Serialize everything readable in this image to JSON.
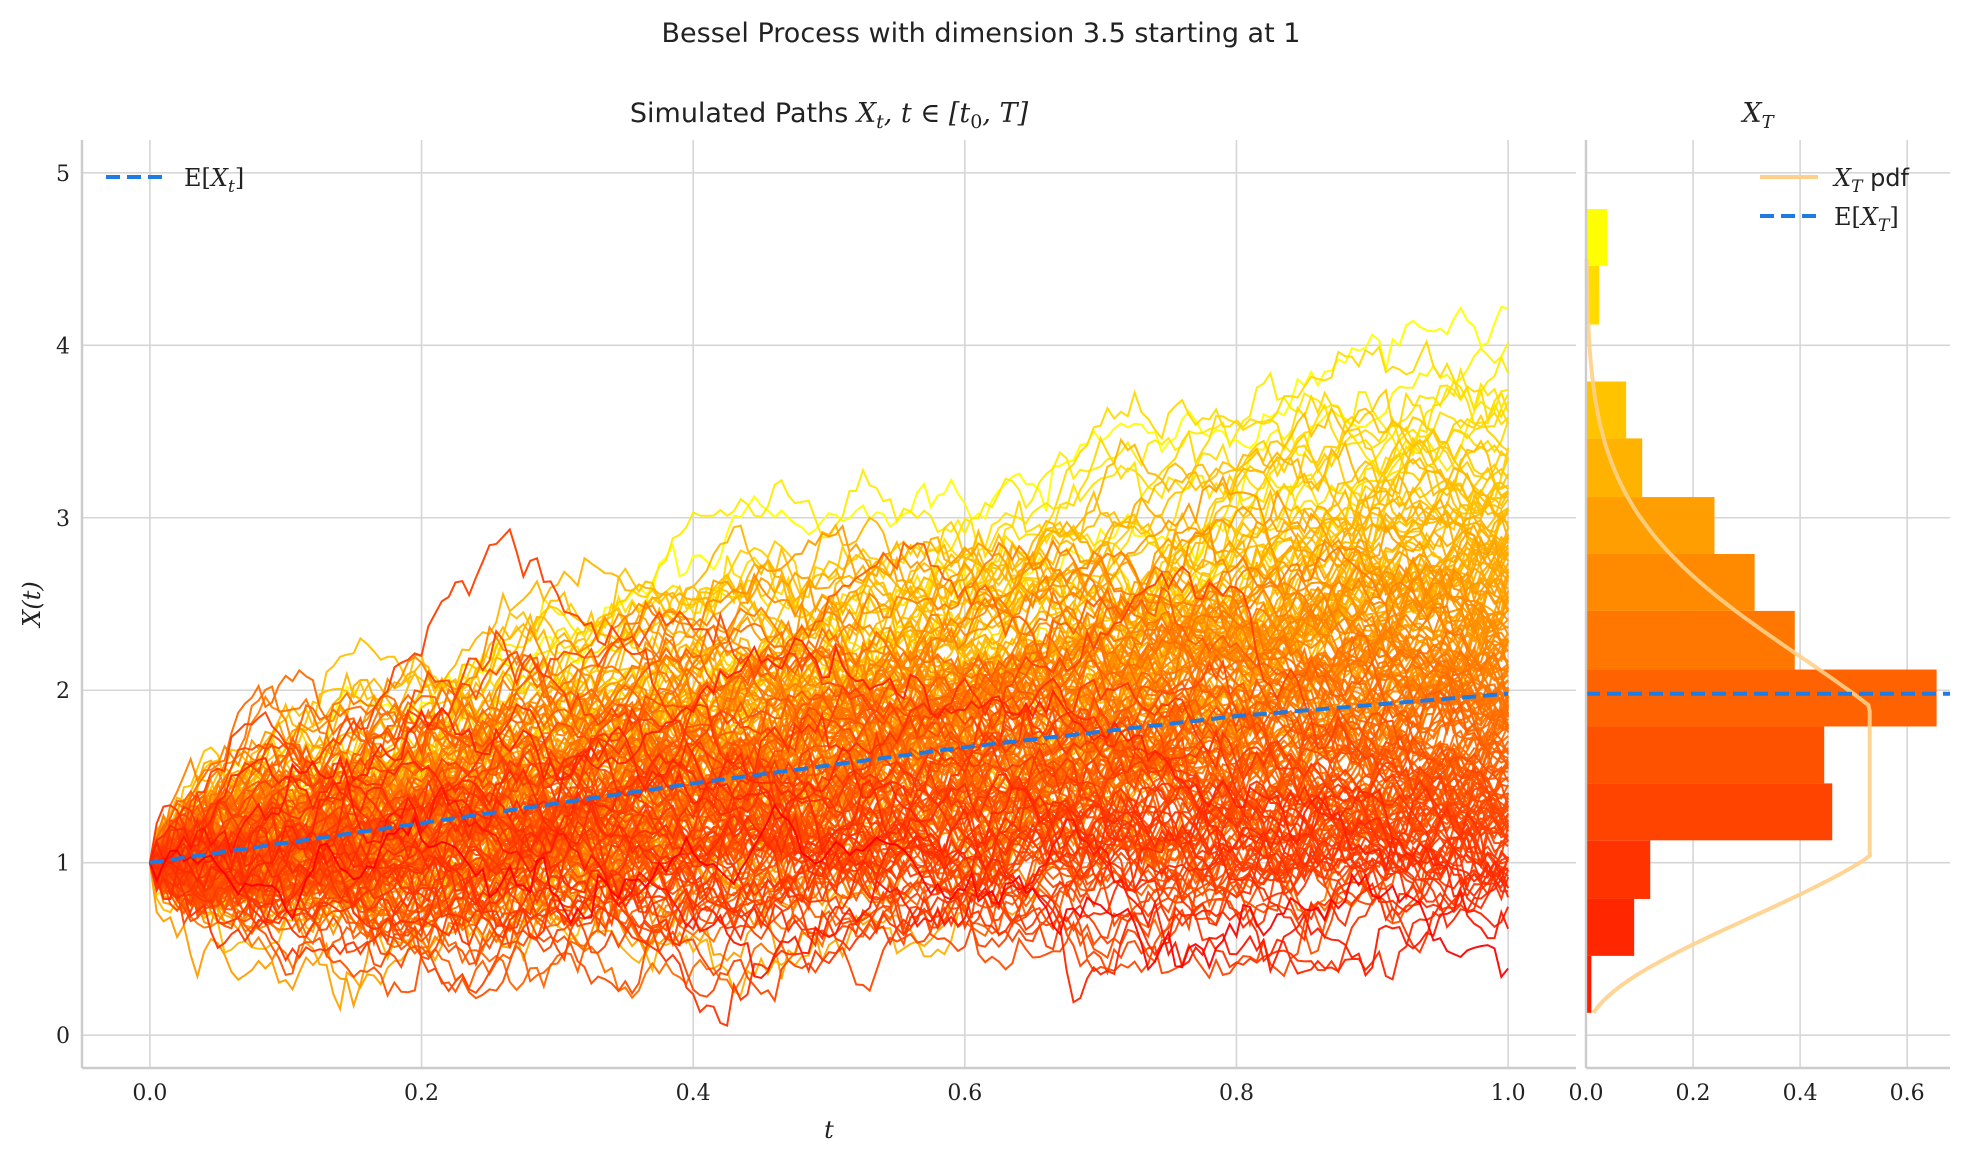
{
  "figure": {
    "suptitle": "Bessel Process with dimension 3.5 starting at 1"
  },
  "chart_data": [
    {
      "panel": "paths",
      "type": "line",
      "title": "Simulated Paths X_t, t ∈ [t_0, T]",
      "title_parts": {
        "text": "Simulated Paths ",
        "math": "X",
        "sub1": "t",
        "mid": ", t ∈ [t",
        "sub2": "0",
        "end": ", T]"
      },
      "xlabel": "t",
      "ylabel": "X(t)",
      "xlim": [
        -0.05,
        1.05
      ],
      "ylim": [
        -0.19,
        5.19
      ],
      "xticks": [
        0.0,
        0.2,
        0.4,
        0.6,
        0.8,
        1.0
      ],
      "xtick_labels": [
        "0.0",
        "0.2",
        "0.4",
        "0.6",
        "0.8",
        "1.0"
      ],
      "yticks": [
        0,
        1,
        2,
        3,
        4,
        5
      ],
      "ytick_labels": [
        "0",
        "1",
        "2",
        "3",
        "4",
        "5"
      ],
      "grid": true,
      "n_paths": 200,
      "dimension": 3.5,
      "start": 1,
      "color_map": "autumn",
      "expectation_line": {
        "x": [
          0.0,
          0.2,
          0.4,
          0.6,
          0.8,
          1.0
        ],
        "y": [
          1.0,
          1.23,
          1.46,
          1.67,
          1.85,
          1.98
        ],
        "color": "#1e7be3",
        "dash": true
      },
      "legend": [
        {
          "label": "E[X_t]",
          "math_parts": {
            "pre": "E[",
            "var": "X",
            "sub": "t",
            "post": "]"
          },
          "color": "#1e7be3",
          "style": "dashed"
        }
      ],
      "legend_loc": "upper-left"
    },
    {
      "panel": "histogram",
      "type": "bar",
      "orientation": "horizontal",
      "title": "X_T",
      "title_parts": {
        "var": "X",
        "sub": "T"
      },
      "xlim": [
        0,
        0.68
      ],
      "ylim": [
        -0.19,
        5.19
      ],
      "xticks": [
        0.0,
        0.2,
        0.4,
        0.6
      ],
      "xtick_labels": [
        "0.0",
        "0.2",
        "0.4",
        "0.6"
      ],
      "grid": true,
      "bins": [
        {
          "y0": 0.13,
          "y1": 0.46,
          "density": 0.01,
          "color": "#ff1a00"
        },
        {
          "y0": 0.46,
          "y1": 0.79,
          "density": 0.09,
          "color": "#ff2600"
        },
        {
          "y0": 0.79,
          "y1": 1.13,
          "density": 0.12,
          "color": "#ff3300"
        },
        {
          "y0": 1.13,
          "y1": 1.46,
          "density": 0.46,
          "color": "#ff4400"
        },
        {
          "y0": 1.46,
          "y1": 1.79,
          "density": 0.445,
          "color": "#ff5200"
        },
        {
          "y0": 1.79,
          "y1": 2.12,
          "density": 0.655,
          "color": "#ff6200"
        },
        {
          "y0": 2.12,
          "y1": 2.46,
          "density": 0.39,
          "color": "#ff7700"
        },
        {
          "y0": 2.46,
          "y1": 2.79,
          "density": 0.315,
          "color": "#ff8a00"
        },
        {
          "y0": 2.79,
          "y1": 3.12,
          "density": 0.24,
          "color": "#ff9e00"
        },
        {
          "y0": 3.12,
          "y1": 3.46,
          "density": 0.105,
          "color": "#ffb200"
        },
        {
          "y0": 3.46,
          "y1": 3.79,
          "density": 0.075,
          "color": "#ffc300"
        },
        {
          "y0": 3.79,
          "y1": 4.12,
          "density": 0.0,
          "color": "#ffd200"
        },
        {
          "y0": 4.12,
          "y1": 4.46,
          "density": 0.025,
          "color": "#ffdb00"
        },
        {
          "y0": 4.46,
          "y1": 4.79,
          "density": 0.04,
          "color": "#ffff00"
        }
      ],
      "pdf_color": "#ffd08a",
      "mean": 1.98,
      "mean_color": "#1e7be3",
      "legend": [
        {
          "label": "X_T pdf",
          "var": "X",
          "sub": "T",
          "text": " pdf",
          "color": "#ffd08a",
          "style": "solid"
        },
        {
          "label": "E[X_T]",
          "pre": "E[",
          "var": "X",
          "sub": "T",
          "post": "]",
          "color": "#1e7be3",
          "style": "dashed"
        }
      ],
      "legend_loc": "upper-right"
    }
  ]
}
